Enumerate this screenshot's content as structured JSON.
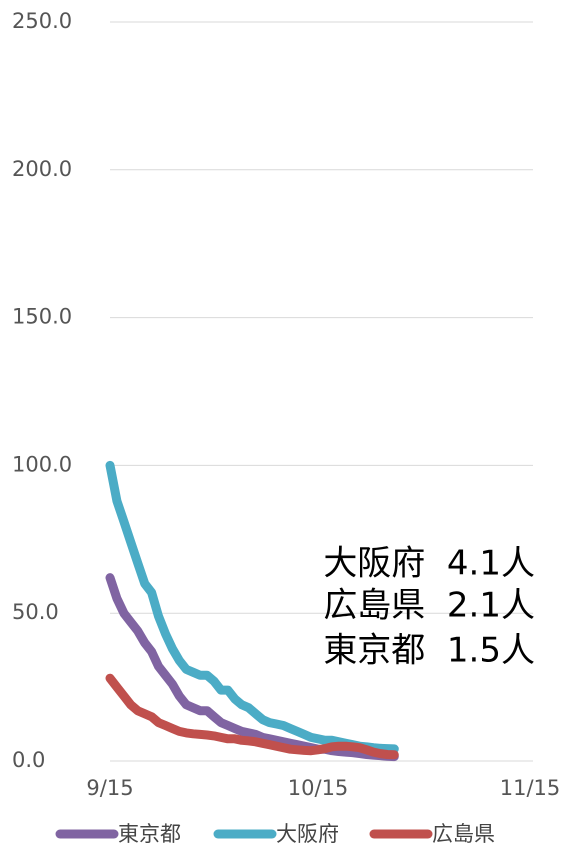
{
  "chart_data": {
    "type": "line",
    "x": [
      "9/15",
      "9/16",
      "9/17",
      "9/18",
      "9/19",
      "9/20",
      "9/21",
      "9/22",
      "9/23",
      "9/24",
      "9/25",
      "9/26",
      "9/27",
      "9/28",
      "9/29",
      "9/30",
      "10/1",
      "10/2",
      "10/3",
      "10/4",
      "10/5",
      "10/6",
      "10/7",
      "10/8",
      "10/9",
      "10/10",
      "10/11",
      "10/12",
      "10/13",
      "10/14",
      "10/15",
      "10/16",
      "10/17",
      "10/18",
      "10/19",
      "10/20",
      "10/21",
      "10/22",
      "10/23",
      "10/24",
      "10/25",
      "10/26"
    ],
    "series": [
      {
        "name": "東京都",
        "color": "#8064a2",
        "values": [
          62,
          55,
          50,
          47,
          44,
          40,
          37,
          32,
          29,
          26,
          22,
          19,
          18,
          17,
          17,
          15,
          13,
          12,
          11,
          10,
          9.5,
          9,
          8,
          7.5,
          7,
          6.5,
          6,
          5.5,
          5,
          4.5,
          4,
          4,
          3.5,
          3.2,
          3,
          2.8,
          2.5,
          2.2,
          2,
          1.8,
          1.6,
          1.5
        ]
      },
      {
        "name": "大阪府",
        "color": "#4bacc6",
        "values": [
          100,
          88,
          81,
          74,
          67,
          60,
          57,
          49,
          43,
          38,
          34,
          31,
          30,
          29,
          29,
          27,
          24,
          24,
          21,
          19,
          18,
          16,
          14,
          13,
          12.5,
          12,
          11,
          10,
          9,
          8,
          7.5,
          7,
          7,
          6.5,
          6,
          5.5,
          5,
          4.8,
          4.5,
          4.3,
          4.2,
          4.1
        ]
      },
      {
        "name": "広島県",
        "color": "#c0504d",
        "values": [
          28,
          25,
          22,
          19,
          17,
          16,
          15,
          13,
          12,
          11,
          10,
          9.5,
          9.2,
          9,
          8.8,
          8.5,
          8,
          7.5,
          7.5,
          7,
          6.8,
          6.5,
          6,
          5.5,
          5,
          4.5,
          4,
          3.8,
          3.6,
          3.5,
          3.8,
          4.2,
          4.8,
          5,
          5,
          4.8,
          4.5,
          3.8,
          3,
          2.5,
          2.2,
          2.1
        ]
      }
    ],
    "xlim": [
      "9/15",
      "11/15"
    ],
    "xticks": [
      "9/15",
      "10/15",
      "11/15"
    ],
    "ylim": [
      0,
      250
    ],
    "yticks": [
      {
        "value": 0,
        "label": "0.0"
      },
      {
        "value": 50,
        "label": "50.0"
      },
      {
        "value": 100,
        "label": "100.0"
      },
      {
        "value": 150,
        "label": "150.0"
      },
      {
        "value": 200,
        "label": "200.0"
      },
      {
        "value": 250,
        "label": "250.0"
      }
    ],
    "grid": true,
    "legend": "bottom",
    "annotations": [
      "大阪府  4.1人",
      "広島県  2.1人",
      "東京都  1.5人"
    ]
  }
}
